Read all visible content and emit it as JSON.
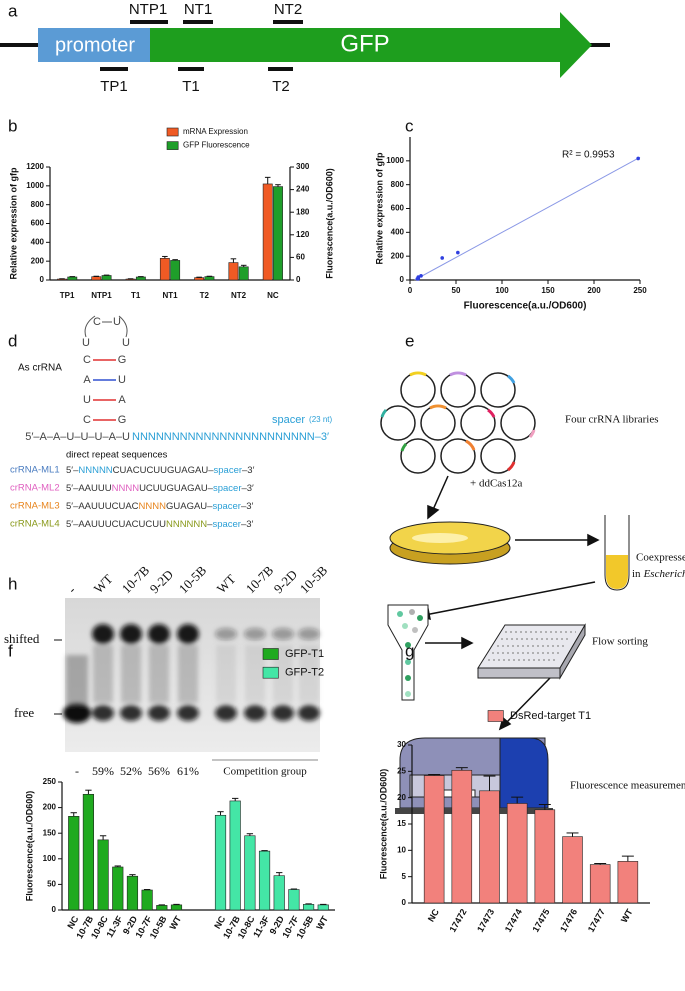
{
  "figure": {
    "panel_labels": [
      "a",
      "b",
      "c",
      "d",
      "e",
      "f",
      "g",
      "h"
    ],
    "a": {
      "promoter": "promoter",
      "gene": "GFP",
      "above": [
        "NTP1",
        "NT1",
        "NT2"
      ],
      "below": [
        "TP1",
        "T1",
        "T2"
      ]
    },
    "d": {
      "label": "As crRNA",
      "loop": [
        "C",
        "U",
        "U",
        "U"
      ],
      "stem": [
        [
          "C",
          "G"
        ],
        [
          "A",
          "U"
        ],
        [
          "U",
          "A"
        ],
        [
          "C",
          "G"
        ]
      ],
      "tail": "5′–A–A–U–U–U–A–U",
      "spacer_seq": "NNNNNNNNNNNNNNNNNNNNNNN–3′",
      "spacer": "spacer",
      "spacer_len": "(23 nt)",
      "repeats_title": "direct repeat sequences",
      "variants": [
        {
          "name": "crRNA-ML1",
          "color": "#4a7cc0",
          "parts": [
            {
              "text": "5′–"
            },
            {
              "text": "NNNNN",
              "color": "#2a9fd6"
            },
            {
              "text": "CUACUCUUGUAGAU–"
            },
            {
              "text": "spacer",
              "color": "#2a9fd6"
            },
            {
              "text": "–3′"
            }
          ]
        },
        {
          "name": "crRNA-ML2",
          "color": "#e060c0",
          "parts": [
            {
              "text": "5′–AAUUU"
            },
            {
              "text": "NNNN",
              "color": "#e060c0"
            },
            {
              "text": "UCUUGUAGAU–"
            },
            {
              "text": "spacer",
              "color": "#2a9fd6"
            },
            {
              "text": "–3′"
            }
          ]
        },
        {
          "name": "crRNA-ML3",
          "color": "#e8841c",
          "parts": [
            {
              "text": "5′–AAUUUCUAC"
            },
            {
              "text": "NNNN",
              "color": "#e8841c"
            },
            {
              "text": "GUAGAU–"
            },
            {
              "text": "spacer",
              "color": "#2a9fd6"
            },
            {
              "text": "–3′"
            }
          ]
        },
        {
          "name": "crRNA-ML4",
          "color": "#8a9a1c",
          "parts": [
            {
              "text": "5′–AAUUUCUACUCUU"
            },
            {
              "text": "NNNNNN",
              "color": "#8a9a1c"
            },
            {
              "text": "–"
            },
            {
              "text": "spacer",
              "color": "#2a9fd6"
            },
            {
              "text": "–3′"
            }
          ]
        }
      ]
    },
    "e": {
      "libraries": "Four crRNA libraries",
      "cas": "+ ddCas12a",
      "coexpressed": "Coexpressed",
      "in": "in",
      "organism": "Escherichia coli",
      "sorting": "Flow sorting",
      "measure": "Fluorescence measurements"
    },
    "h": {
      "lanes": [
        "-",
        "WT",
        "10-7B",
        "9-2D",
        "10-5B",
        "WT",
        "10-7B",
        "9-2D",
        "10-5B"
      ],
      "shifted": "shifted",
      "free": "free",
      "bottom": [
        "-",
        "59%",
        "52%",
        "56%",
        "61%"
      ],
      "group": "Competition group"
    }
  },
  "chart_data": [
    {
      "type": "bar",
      "categories": [
        "TP1",
        "NTP1",
        "T1",
        "NT1",
        "T2",
        "NT2",
        "NC"
      ],
      "series": [
        {
          "name": "mRNA Expression",
          "color": "#f05a24",
          "values": [
            10,
            35,
            10,
            230,
            25,
            185,
            1020
          ],
          "errors": [
            3,
            5,
            3,
            20,
            5,
            40,
            70
          ]
        },
        {
          "name": "GFP Fluorescence",
          "color": "#1f9e2a",
          "axis": "y2",
          "values": [
            8,
            12,
            8,
            52,
            9,
            35,
            248
          ],
          "errors": [
            1,
            1,
            1,
            2,
            1,
            4,
            5
          ]
        }
      ],
      "ylabel": "Relative expression of gfp",
      "y2label": "Fluorescence(a.u./OD600)",
      "ylim": [
        0,
        1200
      ],
      "yticks": [
        0,
        200,
        400,
        600,
        800,
        1000,
        1200
      ],
      "y2lim": [
        0,
        300
      ],
      "y2ticks": [
        0,
        60,
        120,
        180,
        240,
        300
      ],
      "legend": "top"
    },
    {
      "type": "scatter",
      "x": [
        8,
        12,
        9,
        52,
        9,
        35,
        248
      ],
      "values": [
        10,
        35,
        10,
        230,
        25,
        185,
        1020
      ],
      "color": "#2f3fe0",
      "fit": {
        "x": [
          5,
          250
        ],
        "values": [
          0,
          1030
        ],
        "color": "#8a98e6"
      },
      "annotation": "R² = 0.9953",
      "xlabel": "Fluorescence(a.u./OD600)",
      "ylabel": "Relative expression of gfp",
      "xlim": [
        0,
        250
      ],
      "xticks": [
        0,
        50,
        100,
        150,
        200,
        250
      ],
      "ylim": [
        0,
        1200
      ],
      "yticks": [
        0,
        200,
        400,
        600,
        800,
        1000
      ]
    },
    {
      "type": "bar",
      "categories": [
        "NC",
        "10-7B",
        "10-8C",
        "11-3F",
        "9-2D",
        "10-7F",
        "10-5B",
        "WT"
      ],
      "series": [
        {
          "name": "GFP-T1",
          "color": "#1faa1f",
          "values": [
            183,
            226,
            137,
            84,
            66,
            39,
            9,
            10
          ],
          "errors": [
            7,
            8,
            8,
            2,
            3,
            1,
            1,
            1
          ]
        },
        {
          "name": "GFP-T2",
          "color": "#44e6a6",
          "values": [
            185,
            213,
            145,
            115,
            67,
            40,
            11,
            10
          ],
          "errors": [
            7,
            5,
            4,
            1,
            6,
            1,
            1,
            1
          ]
        }
      ],
      "ylabel": "Fluorescence(a.u./OD600)",
      "ylim": [
        0,
        250
      ],
      "yticks": [
        0,
        50,
        100,
        150,
        200,
        250
      ],
      "legend": "top-right"
    },
    {
      "type": "bar",
      "categories": [
        "NC",
        "17472",
        "17473",
        "17474",
        "17475",
        "17476",
        "17477",
        "WT"
      ],
      "series": [
        {
          "name": "DsRed-target T1",
          "color": "#f2817c",
          "values": [
            24.2,
            25.2,
            21.3,
            18.9,
            17.7,
            12.6,
            7.3,
            7.9
          ],
          "errors": [
            0.2,
            0.5,
            2.8,
            1.2,
            1.0,
            0.7,
            0.2,
            1.0
          ]
        }
      ],
      "ylabel": "Fluorescence(a.u./OD600)",
      "ylim": [
        0,
        30
      ],
      "yticks": [
        0,
        5,
        10,
        15,
        20,
        25,
        30
      ],
      "legend": "top-right"
    }
  ]
}
